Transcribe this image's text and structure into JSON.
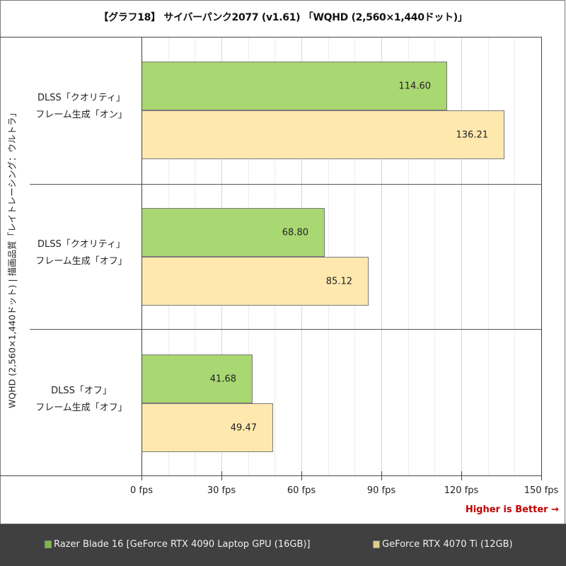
{
  "title": "【グラフ18】 サイバーパンク2077 (v1.61) 「WQHD (2,560×1,440ドット)」",
  "y_axis_label": "WQHD (2,560×1,440ドット) | 描画品質「レイトレーシング：ウルトラ」",
  "higher_is_better": "Higher is Better →",
  "colors": {
    "series1": "#a9d772",
    "series2": "#fee8ae",
    "accent": "#c00000",
    "legend_bg": "#404040"
  },
  "x_ticks": [
    "0 fps",
    "30 fps",
    "60 fps",
    "90 fps",
    "120 fps",
    "150 fps"
  ],
  "groups": [
    {
      "line1": "DLSS「クオリティ」",
      "line2": "フレーム生成「オン」",
      "v1": "114.60",
      "v2": "136.21"
    },
    {
      "line1": "DLSS「クオリティ」",
      "line2": "フレーム生成「オフ」",
      "v1": "68.80",
      "v2": "85.12"
    },
    {
      "line1": "DLSS「オフ」",
      "line2": "フレーム生成「オフ」",
      "v1": "41.68",
      "v2": "49.47"
    }
  ],
  "legend": [
    {
      "label": "Razer Blade 16 [GeForce RTX 4090 Laptop GPU (16GB)]",
      "color": "#7dba45"
    },
    {
      "label": "GeForce RTX 4070 Ti (12GB)",
      "color": "#e3cb8a"
    }
  ],
  "chart_data": {
    "type": "bar",
    "orientation": "horizontal",
    "title": "【グラフ18】 サイバーパンク2077 (v1.61) 「WQHD (2,560×1,440ドット)」",
    "xlabel": "fps",
    "ylabel": "WQHD (2,560×1,440ドット) | 描画品質「レイトレーシング：ウルトラ」",
    "categories": [
      "DLSS「クオリティ」 フレーム生成「オン」",
      "DLSS「クオリティ」 フレーム生成「オフ」",
      "DLSS「オフ」 フレーム生成「オフ」"
    ],
    "series": [
      {
        "name": "Razer Blade 16 [GeForce RTX 4090 Laptop GPU (16GB)]",
        "values": [
          114.6,
          68.8,
          41.68
        ],
        "color": "#a9d772"
      },
      {
        "name": "GeForce RTX 4070 Ti (12GB)",
        "values": [
          136.21,
          85.12,
          49.47
        ],
        "color": "#fee8ae"
      }
    ],
    "xlim": [
      0,
      150
    ],
    "x_tick_values": [
      0,
      30,
      60,
      90,
      120,
      150
    ],
    "x_tick_labels": [
      "0 fps",
      "30 fps",
      "60 fps",
      "90 fps",
      "120 fps",
      "150 fps"
    ],
    "grid": {
      "major_step": 30,
      "minor_step": 10,
      "axis": "x"
    },
    "legend_position": "bottom",
    "annotation": "Higher is Better →"
  }
}
